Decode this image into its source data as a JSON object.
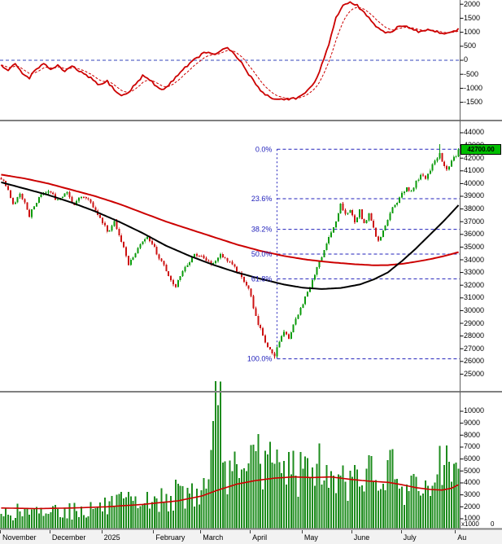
{
  "xaxis": {
    "bars": 195,
    "months": [
      {
        "label": "November",
        "t": 0
      },
      {
        "label": "December",
        "t": 21
      },
      {
        "label": "2025",
        "t": 43
      },
      {
        "label": "February",
        "t": 65
      },
      {
        "label": "March",
        "t": 85
      },
      {
        "label": "April",
        "t": 106
      },
      {
        "label": "May",
        "t": 128
      },
      {
        "label": "June",
        "t": 149
      },
      {
        "label": "July",
        "t": 170
      },
      {
        "label": "Au",
        "t": 193
      }
    ]
  },
  "chart_data": [
    {
      "id": "momentum-oscillator",
      "type": "line",
      "panel": "top",
      "ylim": [
        -2122,
        2151
      ],
      "yticks": [
        2000,
        1500,
        1000,
        500,
        0,
        -500,
        -1000,
        -1500
      ],
      "zero_line": 0,
      "zero_line_color": "#3344bb",
      "line_color": "#cc0000",
      "series": [
        {
          "name": "oscillator-solid",
          "style": "solid",
          "anchors": [
            [
              0,
              -180
            ],
            [
              3,
              -380
            ],
            [
              6,
              -120
            ],
            [
              9,
              -480
            ],
            [
              12,
              -620
            ],
            [
              15,
              -280
            ],
            [
              18,
              -150
            ],
            [
              21,
              -320
            ],
            [
              24,
              -180
            ],
            [
              27,
              -420
            ],
            [
              30,
              -220
            ],
            [
              33,
              -380
            ],
            [
              36,
              -550
            ],
            [
              39,
              -700
            ],
            [
              42,
              -900
            ],
            [
              45,
              -750
            ],
            [
              48,
              -1050
            ],
            [
              51,
              -1280
            ],
            [
              54,
              -1150
            ],
            [
              57,
              -850
            ],
            [
              60,
              -550
            ],
            [
              63,
              -700
            ],
            [
              66,
              -950
            ],
            [
              69,
              -1050
            ],
            [
              72,
              -800
            ],
            [
              75,
              -500
            ],
            [
              78,
              -250
            ],
            [
              81,
              -50
            ],
            [
              84,
              150
            ],
            [
              87,
              300
            ],
            [
              90,
              180
            ],
            [
              93,
              350
            ],
            [
              96,
              420
            ],
            [
              99,
              200
            ],
            [
              102,
              -100
            ],
            [
              105,
              -500
            ],
            [
              108,
              -850
            ],
            [
              111,
              -1150
            ],
            [
              114,
              -1320
            ],
            [
              117,
              -1400
            ],
            [
              120,
              -1390
            ],
            [
              123,
              -1370
            ],
            [
              126,
              -1330
            ],
            [
              129,
              -1200
            ],
            [
              132,
              -900
            ],
            [
              135,
              -400
            ],
            [
              138,
              300
            ],
            [
              140,
              900
            ],
            [
              142,
              1500
            ],
            [
              144,
              1850
            ],
            [
              146,
              2000
            ],
            [
              148,
              2040
            ],
            [
              151,
              1950
            ],
            [
              154,
              1700
            ],
            [
              157,
              1400
            ],
            [
              160,
              1120
            ],
            [
              163,
              950
            ],
            [
              166,
              1060
            ],
            [
              169,
              1230
            ],
            [
              172,
              1180
            ],
            [
              175,
              1060
            ],
            [
              178,
              1000
            ],
            [
              181,
              1110
            ],
            [
              184,
              1050
            ],
            [
              187,
              950
            ],
            [
              190,
              1010
            ],
            [
              193,
              1070
            ],
            [
              194,
              1100
            ]
          ]
        },
        {
          "name": "oscillator-signal",
          "style": "dashed",
          "derived": "ema",
          "alpha": 0.25
        }
      ]
    },
    {
      "id": "price-candles",
      "type": "candlestick",
      "panel": "middle",
      "ylim": [
        23680,
        44897
      ],
      "yticks": [
        44000,
        43000,
        42000,
        41000,
        40000,
        39000,
        38000,
        37000,
        36000,
        35000,
        34000,
        33000,
        32000,
        31000,
        30000,
        29000,
        28000,
        27000,
        26000,
        25000
      ],
      "up_color": "#0b9b0b",
      "down_color": "#cc1111",
      "last_price": "42700.00",
      "last_price_value": 42700,
      "low_extreme": {
        "t": 116,
        "value": 26200
      },
      "high_extreme": {
        "t": 186,
        "value": 43100
      },
      "close_anchors": [
        [
          0,
          40300
        ],
        [
          2,
          39900
        ],
        [
          5,
          38300
        ],
        [
          8,
          39300
        ],
        [
          12,
          37500
        ],
        [
          16,
          38900
        ],
        [
          20,
          39400
        ],
        [
          24,
          38700
        ],
        [
          28,
          39200
        ],
        [
          31,
          38400
        ],
        [
          34,
          38900
        ],
        [
          38,
          38500
        ],
        [
          42,
          37300
        ],
        [
          45,
          36200
        ],
        [
          48,
          36900
        ],
        [
          51,
          35500
        ],
        [
          54,
          33600
        ],
        [
          56,
          34200
        ],
        [
          58,
          35000
        ],
        [
          62,
          35700
        ],
        [
          65,
          34900
        ],
        [
          68,
          33900
        ],
        [
          71,
          32600
        ],
        [
          74,
          31950
        ],
        [
          78,
          33400
        ],
        [
          82,
          34500
        ],
        [
          86,
          34200
        ],
        [
          90,
          33600
        ],
        [
          93,
          34400
        ],
        [
          96,
          34000
        ],
        [
          99,
          33300
        ],
        [
          102,
          32700
        ],
        [
          105,
          31800
        ],
        [
          107,
          30200
        ],
        [
          109,
          28900
        ],
        [
          111,
          28100
        ],
        [
          113,
          27100
        ],
        [
          116,
          26450
        ],
        [
          118,
          27600
        ],
        [
          120,
          28300
        ],
        [
          122,
          27700
        ],
        [
          124,
          28800
        ],
        [
          126,
          29700
        ],
        [
          128,
          30600
        ],
        [
          130,
          31500
        ],
        [
          132,
          32400
        ],
        [
          134,
          33300
        ],
        [
          136,
          34200
        ],
        [
          138,
          35200
        ],
        [
          140,
          36200
        ],
        [
          142,
          37000
        ],
        [
          144,
          38300
        ],
        [
          146,
          37600
        ],
        [
          148,
          38000
        ],
        [
          150,
          37100
        ],
        [
          152,
          37800
        ],
        [
          154,
          36900
        ],
        [
          156,
          37500
        ],
        [
          158,
          36400
        ],
        [
          160,
          35500
        ],
        [
          162,
          36300
        ],
        [
          164,
          37200
        ],
        [
          166,
          38000
        ],
        [
          168,
          38500
        ],
        [
          170,
          39100
        ],
        [
          172,
          39700
        ],
        [
          174,
          39300
        ],
        [
          176,
          40100
        ],
        [
          178,
          40700
        ],
        [
          180,
          40300
        ],
        [
          182,
          41100
        ],
        [
          184,
          41700
        ],
        [
          186,
          42500
        ],
        [
          187,
          41600
        ],
        [
          189,
          41000
        ],
        [
          191,
          41700
        ],
        [
          193,
          42200
        ],
        [
          194,
          42700
        ]
      ],
      "moving_averages": [
        {
          "name": "slow-ma-red",
          "color": "#cc0000",
          "anchors": [
            [
              0,
              40700
            ],
            [
              10,
              40400
            ],
            [
              20,
              40000
            ],
            [
              30,
              39500
            ],
            [
              40,
              39000
            ],
            [
              50,
              38400
            ],
            [
              60,
              37700
            ],
            [
              70,
              37000
            ],
            [
              80,
              36400
            ],
            [
              90,
              35800
            ],
            [
              100,
              35200
            ],
            [
              110,
              34700
            ],
            [
              120,
              34300
            ],
            [
              130,
              34000
            ],
            [
              140,
              33800
            ],
            [
              150,
              33650
            ],
            [
              158,
              33570
            ],
            [
              164,
              33580
            ],
            [
              170,
              33680
            ],
            [
              176,
              33850
            ],
            [
              182,
              34050
            ],
            [
              188,
              34300
            ],
            [
              194,
              34600
            ]
          ]
        },
        {
          "name": "fast-ma-black",
          "color": "#000000",
          "anchors": [
            [
              0,
              40100
            ],
            [
              10,
              39600
            ],
            [
              20,
              39100
            ],
            [
              30,
              38500
            ],
            [
              40,
              37800
            ],
            [
              50,
              37000
            ],
            [
              60,
              36100
            ],
            [
              70,
              35100
            ],
            [
              80,
              34300
            ],
            [
              90,
              33600
            ],
            [
              100,
              33000
            ],
            [
              110,
              32500
            ],
            [
              120,
              32050
            ],
            [
              128,
              31800
            ],
            [
              136,
              31700
            ],
            [
              144,
              31780
            ],
            [
              152,
              32050
            ],
            [
              158,
              32450
            ],
            [
              164,
              33000
            ],
            [
              170,
              33900
            ],
            [
              176,
              34900
            ],
            [
              182,
              36000
            ],
            [
              188,
              37100
            ],
            [
              194,
              38300
            ]
          ]
        }
      ],
      "fibonacci": {
        "color": "#2222bb",
        "start_t": 117,
        "levels": [
          {
            "label": "0.0%",
            "value": 42700
          },
          {
            "label": "23.6%",
            "value": 38807
          },
          {
            "label": "38.2%",
            "value": 36397
          },
          {
            "label": "50.0%",
            "value": 34450
          },
          {
            "label": "61.8%",
            "value": 32503
          },
          {
            "label": "100.0%",
            "value": 26200
          }
        ]
      }
    },
    {
      "id": "volume",
      "type": "bar",
      "panel": "bottom",
      "ylim": [
        180,
        11568
      ],
      "yticks": [
        10000,
        9000,
        8000,
        7000,
        6000,
        5000,
        4000,
        3000,
        2000,
        1000
      ],
      "bar_color": "#1e8c1e",
      "unit_label": "x1000",
      "zero_label": "0",
      "anchors": [
        [
          0,
          1400
        ],
        [
          8,
          1600
        ],
        [
          16,
          1450
        ],
        [
          24,
          1800
        ],
        [
          32,
          1650
        ],
        [
          40,
          1900
        ],
        [
          48,
          2100
        ],
        [
          56,
          2500
        ],
        [
          64,
          2400
        ],
        [
          72,
          2900
        ],
        [
          80,
          3100
        ],
        [
          85,
          3400
        ],
        [
          88,
          4300
        ],
        [
          92,
          10500
        ],
        [
          95,
          5800
        ],
        [
          98,
          5000
        ],
        [
          101,
          4400
        ],
        [
          104,
          5000
        ],
        [
          107,
          7200
        ],
        [
          110,
          5600
        ],
        [
          113,
          6400
        ],
        [
          116,
          5600
        ],
        [
          119,
          4800
        ],
        [
          122,
          6600
        ],
        [
          125,
          4600
        ],
        [
          128,
          5200
        ],
        [
          131,
          4400
        ],
        [
          134,
          5600
        ],
        [
          137,
          4200
        ],
        [
          140,
          5000
        ],
        [
          143,
          4700
        ],
        [
          146,
          4100
        ],
        [
          149,
          4500
        ],
        [
          152,
          3700
        ],
        [
          155,
          5200
        ],
        [
          158,
          4100
        ],
        [
          161,
          3500
        ],
        [
          164,
          5900
        ],
        [
          167,
          4300
        ],
        [
          170,
          3700
        ],
        [
          173,
          3300
        ],
        [
          176,
          4500
        ],
        [
          179,
          3100
        ],
        [
          182,
          2900
        ],
        [
          185,
          4700
        ],
        [
          188,
          5500
        ],
        [
          191,
          4100
        ],
        [
          194,
          5200
        ]
      ],
      "volume_ma": {
        "name": "volume-ma",
        "color": "#cc0000",
        "anchors": [
          [
            0,
            1900
          ],
          [
            15,
            1850
          ],
          [
            30,
            1900
          ],
          [
            45,
            2000
          ],
          [
            60,
            2200
          ],
          [
            75,
            2500
          ],
          [
            85,
            2900
          ],
          [
            92,
            3400
          ],
          [
            100,
            3900
          ],
          [
            108,
            4200
          ],
          [
            116,
            4400
          ],
          [
            124,
            4500
          ],
          [
            132,
            4450
          ],
          [
            140,
            4500
          ],
          [
            148,
            4300
          ],
          [
            156,
            4150
          ],
          [
            164,
            4050
          ],
          [
            170,
            3850
          ],
          [
            176,
            3600
          ],
          [
            182,
            3450
          ],
          [
            187,
            3400
          ],
          [
            191,
            3550
          ],
          [
            194,
            3850
          ]
        ]
      }
    }
  ]
}
